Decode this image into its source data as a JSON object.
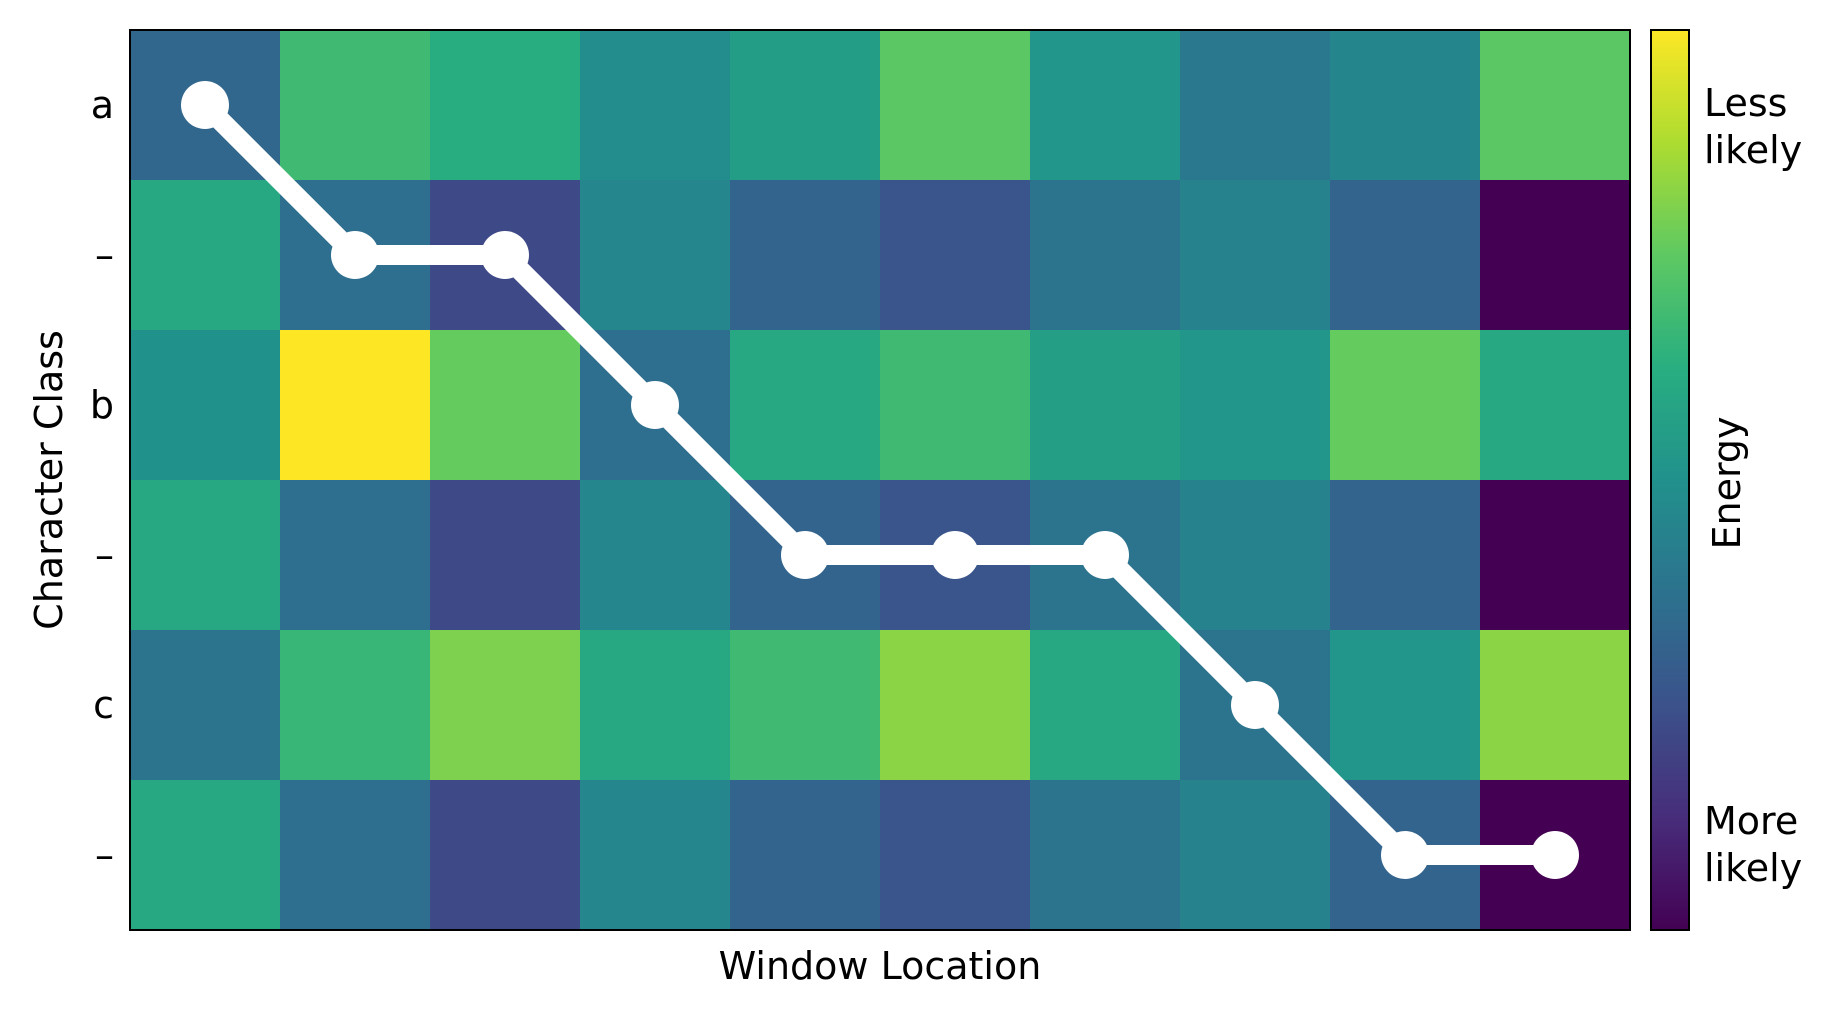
{
  "chart_data": {
    "type": "heatmap",
    "title": "",
    "xlabel": "Window Location",
    "ylabel": "Character Class",
    "y_tick_labels": [
      "a",
      "–",
      "b",
      "–",
      "c",
      "–"
    ],
    "x_tick_labels": [],
    "n_columns": 10,
    "values": [
      [
        0.33,
        0.68,
        0.62,
        0.48,
        0.55,
        0.74,
        0.52,
        0.4,
        0.45,
        0.74
      ],
      [
        0.6,
        0.36,
        0.22,
        0.46,
        0.32,
        0.26,
        0.38,
        0.44,
        0.32,
        0.0
      ],
      [
        0.5,
        1.0,
        0.76,
        0.36,
        0.6,
        0.68,
        0.56,
        0.52,
        0.76,
        0.6
      ],
      [
        0.6,
        0.36,
        0.22,
        0.46,
        0.32,
        0.26,
        0.38,
        0.44,
        0.32,
        0.0
      ],
      [
        0.38,
        0.66,
        0.8,
        0.6,
        0.68,
        0.82,
        0.6,
        0.38,
        0.52,
        0.82
      ],
      [
        0.6,
        0.36,
        0.22,
        0.46,
        0.32,
        0.26,
        0.38,
        0.44,
        0.32,
        0.0
      ]
    ],
    "colormap": "viridis",
    "path": {
      "name": "alignment path",
      "color": "#ffffff",
      "points": [
        {
          "col": 0,
          "row": 0
        },
        {
          "col": 1,
          "row": 1
        },
        {
          "col": 2,
          "row": 1
        },
        {
          "col": 3,
          "row": 2
        },
        {
          "col": 4,
          "row": 3
        },
        {
          "col": 5,
          "row": 3
        },
        {
          "col": 6,
          "row": 3
        },
        {
          "col": 7,
          "row": 4
        },
        {
          "col": 8,
          "row": 5
        },
        {
          "col": 9,
          "row": 5
        }
      ]
    },
    "colorbar": {
      "label": "Energy",
      "top_label": [
        "Less",
        "likely"
      ],
      "bottom_label": [
        "More",
        "likely"
      ]
    },
    "grid": false
  }
}
